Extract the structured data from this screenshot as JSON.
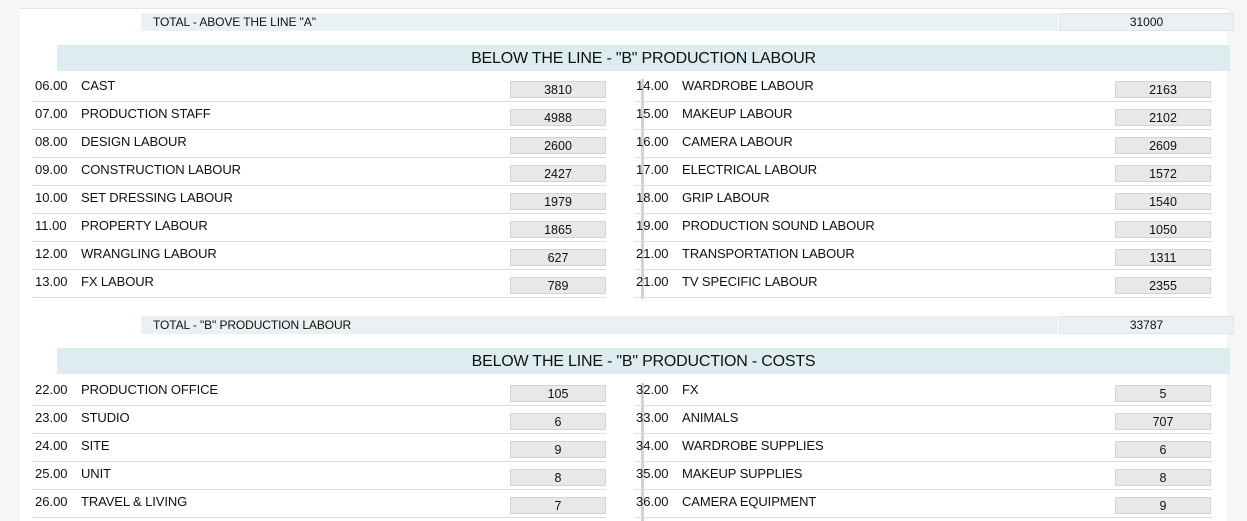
{
  "total_a": {
    "label": "TOTAL - ABOVE THE LINE \"A\"",
    "value": "31000"
  },
  "labour": {
    "title": "BELOW THE LINE - \"B\" PRODUCTION LABOUR",
    "left": [
      {
        "code": "06.00",
        "name": "CAST",
        "value": "3810"
      },
      {
        "code": "07.00",
        "name": "PRODUCTION STAFF",
        "value": "4988"
      },
      {
        "code": "08.00",
        "name": "DESIGN LABOUR",
        "value": "2600"
      },
      {
        "code": "09.00",
        "name": "CONSTRUCTION LABOUR",
        "value": "2427"
      },
      {
        "code": "10.00",
        "name": "SET DRESSING LABOUR",
        "value": "1979"
      },
      {
        "code": "11.00",
        "name": "PROPERTY LABOUR",
        "value": "1865"
      },
      {
        "code": "12.00",
        "name": "WRANGLING LABOUR",
        "value": "627"
      },
      {
        "code": "13.00",
        "name": "FX LABOUR",
        "value": "789"
      }
    ],
    "right": [
      {
        "code": "14.00",
        "name": "WARDROBE LABOUR",
        "value": "2163"
      },
      {
        "code": "15.00",
        "name": "MAKEUP LABOUR",
        "value": "2102"
      },
      {
        "code": "16.00",
        "name": "CAMERA LABOUR",
        "value": "2609"
      },
      {
        "code": "17.00",
        "name": "ELECTRICAL LABOUR",
        "value": "1572"
      },
      {
        "code": "18.00",
        "name": "GRIP LABOUR",
        "value": "1540"
      },
      {
        "code": "19.00",
        "name": "PRODUCTION SOUND LABOUR",
        "value": "1050"
      },
      {
        "code": "21.00",
        "name": "TRANSPORTATION LABOUR",
        "value": "1311"
      },
      {
        "code": "21.00",
        "name": "TV SPECIFIC LABOUR",
        "value": "2355"
      }
    ]
  },
  "total_b_labour": {
    "label": "TOTAL - \"B\" PRODUCTION LABOUR",
    "value": "33787"
  },
  "costs": {
    "title": "BELOW THE LINE - \"B\" PRODUCTION - COSTS",
    "left": [
      {
        "code": "22.00",
        "name": "PRODUCTION OFFICE",
        "value": "105"
      },
      {
        "code": "23.00",
        "name": "STUDIO",
        "value": "6"
      },
      {
        "code": "24.00",
        "name": "SITE",
        "value": "9"
      },
      {
        "code": "25.00",
        "name": "UNIT",
        "value": "8"
      },
      {
        "code": "26.00",
        "name": "TRAVEL & LIVING",
        "value": "7"
      }
    ],
    "right": [
      {
        "code": "32.00",
        "name": "FX",
        "value": "5"
      },
      {
        "code": "33.00",
        "name": "ANIMALS",
        "value": "707"
      },
      {
        "code": "34.00",
        "name": "WARDROBE SUPPLIES",
        "value": "6"
      },
      {
        "code": "35.00",
        "name": "MAKEUP SUPPLIES",
        "value": "8"
      },
      {
        "code": "36.00",
        "name": "CAMERA EQUIPMENT",
        "value": "9"
      }
    ]
  }
}
